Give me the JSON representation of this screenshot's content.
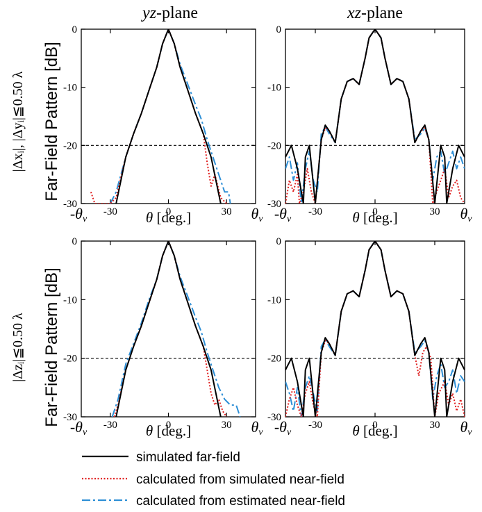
{
  "col_titles": [
    {
      "italic": "yz",
      "rest": "-plane"
    },
    {
      "italic": "xz",
      "rest": "-plane"
    }
  ],
  "row_labels": [
    {
      "line": "|Δxᵢ|, |Δyᵢ|≦0.50 λ"
    },
    {
      "line": "|Δzᵢ|≦0.50 λ"
    }
  ],
  "ylabel": "Far-Field Pattern [dB]",
  "xlabel": {
    "symbol": "θ",
    "rest": " [deg.]"
  },
  "theta_v_label": "θ",
  "theta_v_sub": "v",
  "yticks": [
    0,
    -10,
    -20,
    -30
  ],
  "xtick_labels": [
    "-30",
    "0",
    "30"
  ],
  "colors": {
    "simulated": "#000000",
    "calc_sim": "#e02020",
    "calc_est": "#2e8fd6"
  },
  "legend": [
    {
      "label": "simulated far-field",
      "style": "solid"
    },
    {
      "label": "calculated from simulated near-field",
      "style": "dotted"
    },
    {
      "label": "calculated from estimated near-field",
      "style": "dashdot"
    }
  ],
  "chart_data": [
    {
      "type": "line",
      "panel": "yz-plane, |Δx|,|Δy|≦0.50λ",
      "xlim": [
        -45,
        45
      ],
      "ylim": [
        -30,
        0
      ],
      "reference_line_y": -20,
      "series": [
        {
          "name": "simulated far-field",
          "x": [
            -27,
            -22,
            -18,
            -14,
            -10,
            -6,
            -3,
            0,
            3,
            6,
            10,
            14,
            18,
            22,
            27
          ],
          "y": [
            -30,
            -22,
            -18,
            -14.5,
            -10.5,
            -6.5,
            -2.5,
            0,
            -2.5,
            -6.5,
            -10.5,
            -14.5,
            -18,
            -22,
            -30
          ]
        },
        {
          "name": "calculated from simulated near-field",
          "x": [
            -40,
            -38,
            -30,
            -27,
            -22,
            -18,
            -14,
            -10,
            -6,
            -3,
            0,
            3,
            6,
            10,
            14,
            18,
            20,
            22,
            24,
            27,
            30
          ],
          "y": [
            -28,
            -30,
            -30,
            -29,
            -22,
            -18,
            -14.5,
            -10.5,
            -6.5,
            -2.5,
            0,
            -2.5,
            -6.5,
            -10.5,
            -14.5,
            -18,
            -23,
            -27,
            -25,
            -29,
            -30
          ]
        },
        {
          "name": "calculated from estimated near-field",
          "x": [
            -30,
            -27,
            -22,
            -18,
            -14,
            -10,
            -6,
            -3,
            0,
            3,
            6,
            10,
            14,
            17,
            20,
            23,
            26,
            29,
            31,
            32
          ],
          "y": [
            -30,
            -28,
            -22,
            -18,
            -14.5,
            -10.5,
            -6.5,
            -2.5,
            0,
            -2.5,
            -6,
            -9.5,
            -13,
            -15.5,
            -19,
            -22,
            -25,
            -28,
            -28,
            -30
          ]
        }
      ]
    },
    {
      "type": "line",
      "panel": "xz-plane, |Δx|,|Δy|≦0.50λ",
      "xlim": [
        -45,
        45
      ],
      "ylim": [
        -30,
        0
      ],
      "reference_line_y": -20,
      "series": [
        {
          "name": "simulated far-field",
          "x": [
            -45,
            -42,
            -39,
            -36,
            -35,
            -33,
            -30,
            -27,
            -25,
            -23,
            -20,
            -17,
            -14,
            -11,
            -8,
            -5,
            -3,
            0,
            3,
            5,
            8,
            11,
            14,
            17,
            20,
            23,
            25,
            27,
            30,
            33,
            35,
            36,
            39,
            42,
            45
          ],
          "y": [
            -22,
            -20,
            -24,
            -30,
            -22,
            -20,
            -30,
            -19,
            -16.5,
            -17.5,
            -19.5,
            -12,
            -9,
            -8.5,
            -9.5,
            -5,
            -1.5,
            0,
            -1.5,
            -5,
            -9.5,
            -8.5,
            -9,
            -12,
            -19.5,
            -17.5,
            -16.5,
            -19,
            -30,
            -20,
            -22,
            -30,
            -24,
            -20,
            -22
          ]
        },
        {
          "name": "calculated from simulated near-field",
          "x": [
            -45,
            -43,
            -41,
            -39,
            -38,
            -36,
            -34,
            -32,
            -30,
            -27,
            -25,
            -23,
            -20,
            -17,
            -14,
            -11,
            -8,
            -5,
            -3,
            0,
            3,
            5,
            8,
            11,
            14,
            17,
            20,
            23,
            25,
            27,
            29,
            32,
            35,
            37,
            39,
            41,
            43,
            45
          ],
          "y": [
            -30,
            -26,
            -28,
            -25,
            -30,
            -28,
            -24,
            -28,
            -30,
            -19,
            -17,
            -17.5,
            -19.5,
            -12,
            -9,
            -8.5,
            -9.5,
            -5,
            -1.5,
            0,
            -1.5,
            -5,
            -9.5,
            -8.5,
            -9,
            -12,
            -19.5,
            -17.5,
            -17,
            -19,
            -30,
            -27,
            -24,
            -29,
            -27,
            -26,
            -29,
            -30
          ]
        },
        {
          "name": "calculated from estimated near-field",
          "x": [
            -45,
            -43,
            -41,
            -39,
            -37,
            -35,
            -33,
            -31,
            -29,
            -27,
            -25,
            -23,
            -20,
            -17,
            -14,
            -11,
            -8,
            -5,
            -3,
            0,
            3,
            5,
            8,
            11,
            14,
            17,
            20,
            23,
            25,
            27,
            29,
            31,
            33,
            35,
            37,
            39,
            41,
            43,
            45
          ],
          "y": [
            -24,
            -22,
            -26,
            -23,
            -30,
            -24,
            -21,
            -26,
            -28,
            -18,
            -16.8,
            -18,
            -19.5,
            -12,
            -9,
            -8.5,
            -9.5,
            -5,
            -1.5,
            0,
            -1.5,
            -5,
            -9.5,
            -8.5,
            -9,
            -12,
            -19,
            -18,
            -17,
            -19,
            -26,
            -22,
            -21,
            -25,
            -23,
            -21,
            -24,
            -22,
            -24
          ]
        }
      ]
    },
    {
      "type": "line",
      "panel": "yz-plane, |Δz|≦0.50λ",
      "xlim": [
        -45,
        45
      ],
      "ylim": [
        -30,
        0
      ],
      "reference_line_y": -20,
      "series": [
        {
          "name": "simulated far-field",
          "x": [
            -27,
            -22,
            -18,
            -14,
            -10,
            -6,
            -3,
            0,
            3,
            6,
            10,
            14,
            18,
            22,
            27
          ],
          "y": [
            -30,
            -22,
            -18,
            -14.5,
            -10.5,
            -6.5,
            -2.5,
            0,
            -2.5,
            -6.5,
            -10.5,
            -14.5,
            -18,
            -22,
            -30
          ]
        },
        {
          "name": "calculated from simulated near-field",
          "x": [
            -28,
            -26,
            -22,
            -18,
            -14,
            -10,
            -6,
            -3,
            0,
            3,
            6,
            10,
            14,
            18,
            20,
            22,
            24,
            26,
            28,
            30
          ],
          "y": [
            -30,
            -28,
            -22,
            -18,
            -14.5,
            -10.5,
            -6.5,
            -2.5,
            0,
            -2.5,
            -6.5,
            -10.5,
            -14.5,
            -18,
            -22,
            -26,
            -28,
            -27,
            -29,
            -30
          ]
        },
        {
          "name": "calculated from estimated near-field",
          "x": [
            -29,
            -26,
            -22,
            -18,
            -14,
            -10,
            -6,
            -3,
            0,
            3,
            6,
            10,
            14,
            17,
            20,
            23,
            26,
            29,
            32,
            35,
            37
          ],
          "y": [
            -30,
            -27,
            -21,
            -17.5,
            -14,
            -10,
            -6.5,
            -2.5,
            0,
            -2.5,
            -6,
            -9.5,
            -13,
            -15.5,
            -19,
            -22,
            -25,
            -27,
            -28,
            -28,
            -30
          ]
        }
      ]
    },
    {
      "type": "line",
      "panel": "xz-plane, |Δz|≦0.50λ",
      "xlim": [
        -45,
        45
      ],
      "ylim": [
        -30,
        0
      ],
      "reference_line_y": -20,
      "series": [
        {
          "name": "simulated far-field",
          "x": [
            -45,
            -42,
            -39,
            -36,
            -35,
            -33,
            -30,
            -27,
            -25,
            -23,
            -20,
            -17,
            -14,
            -11,
            -8,
            -5,
            -3,
            0,
            3,
            5,
            8,
            11,
            14,
            17,
            20,
            23,
            25,
            27,
            30,
            33,
            35,
            36,
            39,
            42,
            45
          ],
          "y": [
            -22,
            -20,
            -24,
            -30,
            -22,
            -20,
            -30,
            -19,
            -16.5,
            -17.5,
            -19.5,
            -12,
            -9,
            -8.5,
            -9.5,
            -5,
            -1.5,
            0,
            -1.5,
            -5,
            -9.5,
            -8.5,
            -9,
            -12,
            -19.5,
            -17.5,
            -16.5,
            -19,
            -30,
            -20,
            -22,
            -30,
            -24,
            -20,
            -22
          ]
        },
        {
          "name": "calculated from simulated near-field",
          "x": [
            -45,
            -43,
            -41,
            -39,
            -37,
            -35,
            -33,
            -31,
            -29,
            -27,
            -25,
            -23,
            -20,
            -17,
            -14,
            -11,
            -8,
            -5,
            -3,
            0,
            3,
            5,
            8,
            11,
            14,
            17,
            20,
            22,
            24,
            26,
            28,
            30,
            32,
            35,
            37,
            39,
            41,
            43,
            45
          ],
          "y": [
            -30,
            -27,
            -25,
            -28,
            -30,
            -26,
            -24,
            -28,
            -30,
            -19,
            -17,
            -17.5,
            -19.5,
            -12,
            -9,
            -8.5,
            -9.5,
            -5,
            -1.5,
            0,
            -1.5,
            -5,
            -9.5,
            -8.5,
            -9,
            -12,
            -19.5,
            -23,
            -19,
            -18,
            -20,
            -30,
            -26,
            -24,
            -28,
            -26,
            -29,
            -27,
            -30
          ]
        },
        {
          "name": "calculated from estimated near-field",
          "x": [
            -45,
            -43,
            -41,
            -39,
            -37,
            -35,
            -33,
            -31,
            -29,
            -27,
            -25,
            -23,
            -20,
            -17,
            -14,
            -11,
            -8,
            -5,
            -3,
            0,
            3,
            5,
            8,
            11,
            14,
            17,
            20,
            23,
            25,
            27,
            29,
            31,
            33,
            35,
            37,
            39,
            41,
            43,
            45
          ],
          "y": [
            -24,
            -26,
            -29,
            -25,
            -30,
            -25,
            -23,
            -26,
            -29,
            -18,
            -16.8,
            -18,
            -19.5,
            -12,
            -9,
            -8.5,
            -9.5,
            -5,
            -1.5,
            0,
            -1.5,
            -5,
            -9.5,
            -8.5,
            -9,
            -12,
            -19,
            -18,
            -17,
            -19,
            -27,
            -23,
            -21,
            -25,
            -24,
            -22,
            -26,
            -23,
            -24
          ]
        }
      ]
    }
  ]
}
